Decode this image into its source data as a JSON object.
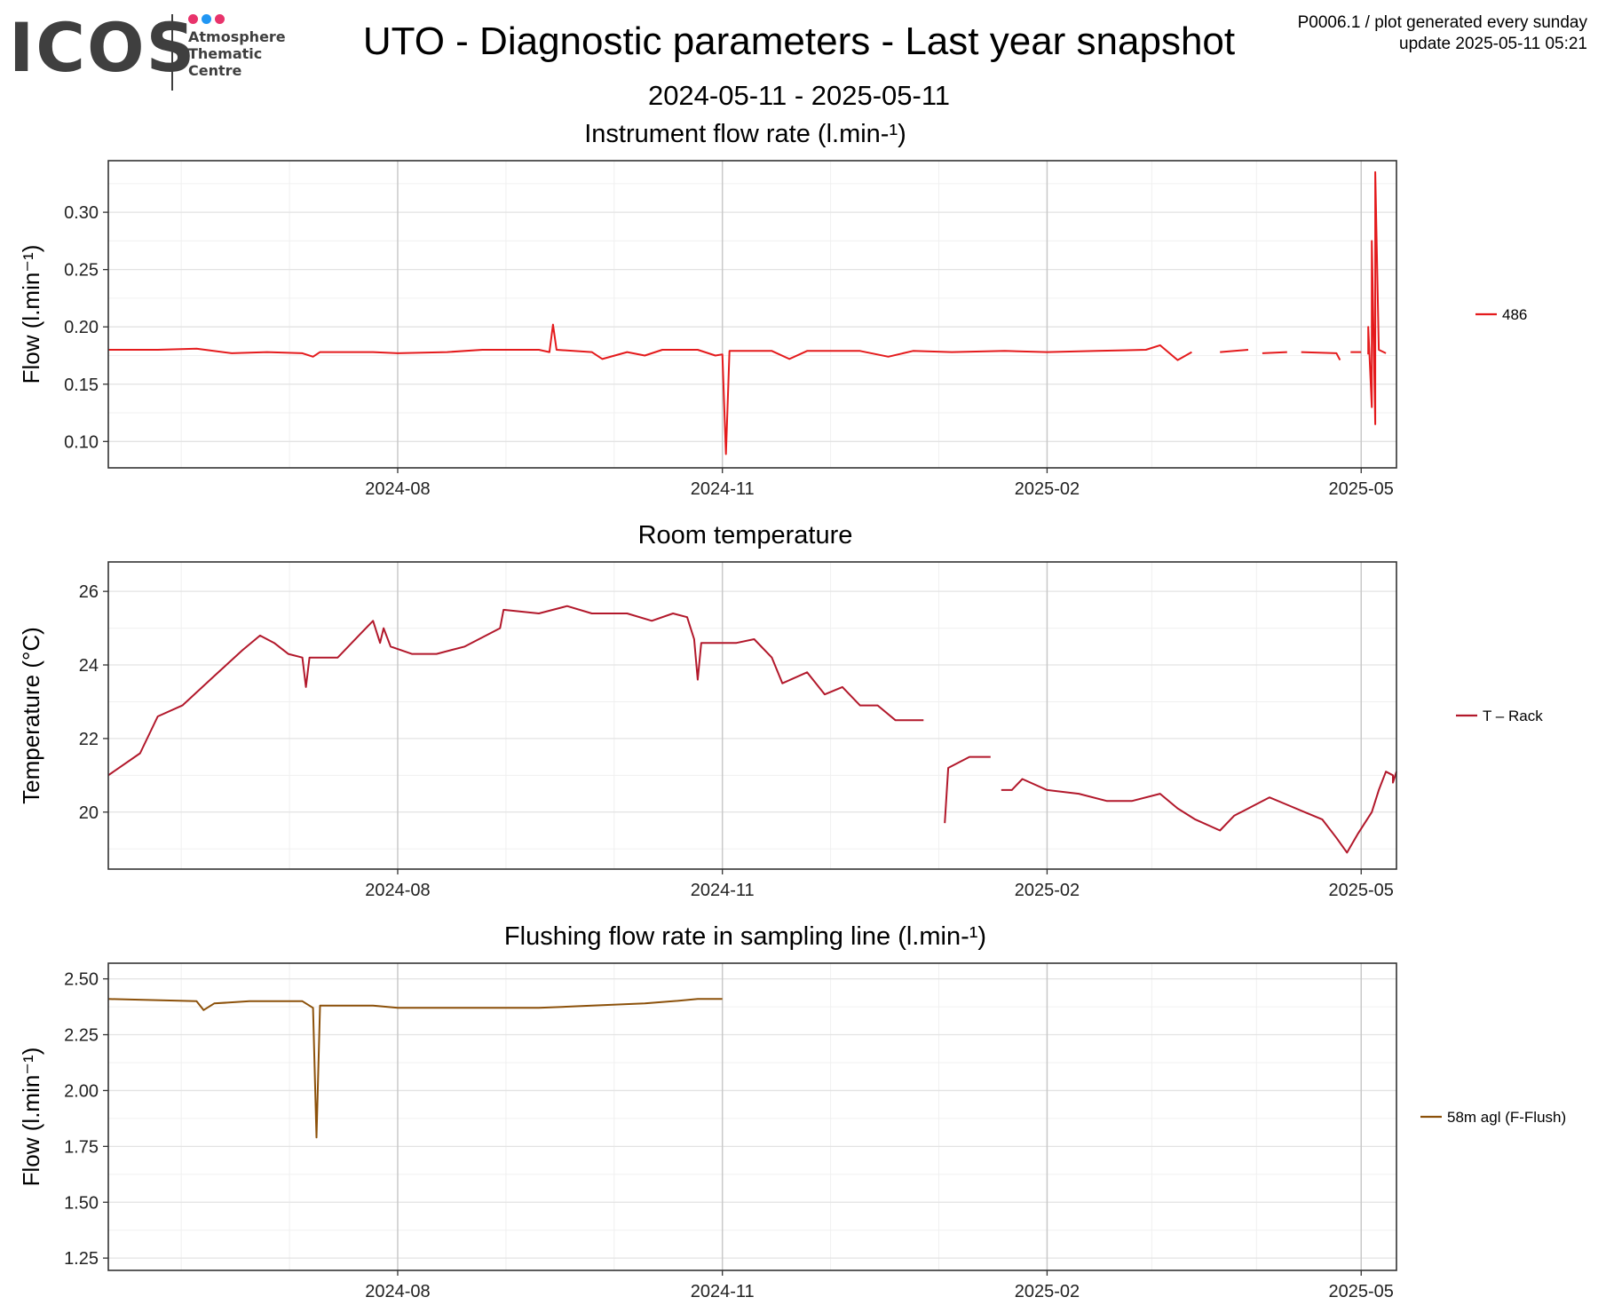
{
  "logo": {
    "word": "ICOS",
    "line1": "Atmosphere",
    "line2": "Thematic",
    "line3": "Centre",
    "dot_colors": [
      "#e8336b",
      "#2196f3",
      "#e8336b"
    ]
  },
  "header": {
    "title": "UTO - Diagnostic parameters - Last year snapshot",
    "date_range": "2024-05-11 - 2025-05-11",
    "meta_line1": "P0006.1 / plot generated every sunday",
    "meta_line2": "update  2025-05-11 05:21"
  },
  "chart_data": [
    {
      "type": "line",
      "title": "Instrument flow rate (l.min-¹)",
      "ylabel": "Flow (l.min⁻¹)",
      "xlim": [
        "2024-05-11",
        "2025-05-11"
      ],
      "ylim": [
        0.077,
        0.345
      ],
      "x_ticks": [
        "2024-08-01",
        "2024-11-01",
        "2025-02-01",
        "2025-05-01"
      ],
      "x_tick_labels": [
        "2024-08",
        "2024-11",
        "2025-02",
        "2025-05"
      ],
      "y_ticks": [
        0.1,
        0.15,
        0.2,
        0.25,
        0.3
      ],
      "y_tick_labels": [
        "0.10",
        "0.15",
        "0.20",
        "0.25",
        "0.30"
      ],
      "grid": true,
      "legend": "right",
      "series": [
        {
          "name": "486",
          "color": "#e41a1c",
          "points": [
            [
              "2024-05-11",
              0.18
            ],
            [
              "2024-05-25",
              0.18
            ],
            [
              "2024-06-05",
              0.181
            ],
            [
              "2024-06-15",
              0.177
            ],
            [
              "2024-06-25",
              0.178
            ],
            [
              "2024-07-05",
              0.177
            ],
            [
              "2024-07-08",
              0.174
            ],
            [
              "2024-07-10",
              0.178
            ],
            [
              "2024-07-25",
              0.178
            ],
            [
              "2024-08-01",
              0.177
            ],
            [
              "2024-08-15",
              0.178
            ],
            [
              "2024-08-25",
              0.18
            ],
            [
              "2024-09-10",
              0.18
            ],
            [
              "2024-09-13",
              0.178
            ],
            [
              "2024-09-14",
              0.202
            ],
            [
              "2024-09-15",
              0.18
            ],
            [
              "2024-09-25",
              0.178
            ],
            [
              "2024-09-28",
              0.172
            ],
            [
              "2024-10-05",
              0.178
            ],
            [
              "2024-10-10",
              0.175
            ],
            [
              "2024-10-15",
              0.18
            ],
            [
              "2024-10-25",
              0.18
            ],
            [
              "2024-10-30",
              0.175
            ],
            [
              "2024-11-01",
              0.176
            ],
            [
              "2024-11-02",
              0.089
            ],
            [
              "2024-11-03",
              0.179
            ],
            [
              "2024-11-15",
              0.179
            ],
            [
              "2024-11-20",
              0.172
            ],
            [
              "2024-11-25",
              0.179
            ],
            [
              "2024-12-10",
              0.179
            ],
            [
              "2024-12-18",
              0.174
            ],
            [
              "2024-12-25",
              0.179
            ],
            [
              "2025-01-05",
              0.178
            ],
            [
              "2025-01-20",
              0.179
            ],
            [
              "2025-02-01",
              0.178
            ],
            [
              "2025-02-15",
              0.179
            ],
            [
              "2025-03-01",
              0.18
            ],
            [
              "2025-03-05",
              0.184
            ],
            [
              "2025-03-10",
              0.171
            ],
            [
              "2025-03-14",
              0.178
            ],
            [
              "2025-03-20",
              null
            ],
            [
              "2025-03-22",
              0.178
            ],
            [
              "2025-03-30",
              0.18
            ],
            [
              "2025-04-01",
              null
            ],
            [
              "2025-04-03",
              0.177
            ],
            [
              "2025-04-10",
              0.178
            ],
            [
              "2025-04-12",
              null
            ],
            [
              "2025-04-14",
              0.178
            ],
            [
              "2025-04-24",
              0.177
            ],
            [
              "2025-04-25",
              0.171
            ],
            [
              "2025-04-26",
              null
            ],
            [
              "2025-04-28",
              0.178
            ],
            [
              "2025-05-01",
              0.178
            ],
            [
              "2025-05-02",
              null
            ],
            [
              "2025-05-03",
              0.176
            ],
            [
              "2025-05-03",
              0.2
            ],
            [
              "2025-05-04",
              0.13
            ],
            [
              "2025-05-04",
              0.275
            ],
            [
              "2025-05-05",
              0.115
            ],
            [
              "2025-05-05",
              0.335
            ],
            [
              "2025-05-06",
              0.18
            ],
            [
              "2025-05-08",
              0.177
            ]
          ]
        }
      ]
    },
    {
      "type": "line",
      "title": "Room temperature",
      "ylabel": "Temperature (°C)",
      "xlim": [
        "2024-05-11",
        "2025-05-11"
      ],
      "ylim": [
        18.45,
        26.8
      ],
      "x_ticks": [
        "2024-08-01",
        "2024-11-01",
        "2025-02-01",
        "2025-05-01"
      ],
      "x_tick_labels": [
        "2024-08",
        "2024-11",
        "2025-02",
        "2025-05"
      ],
      "y_ticks": [
        20,
        22,
        24,
        26
      ],
      "y_tick_labels": [
        "20",
        "22",
        "24",
        "26"
      ],
      "grid": true,
      "legend": "right",
      "series": [
        {
          "name": "T – Rack",
          "color": "#b2182b",
          "points": [
            [
              "2024-05-11",
              21.0
            ],
            [
              "2024-05-20",
              21.6
            ],
            [
              "2024-05-25",
              22.6
            ],
            [
              "2024-06-01",
              22.9
            ],
            [
              "2024-06-10",
              23.7
            ],
            [
              "2024-06-18",
              24.4
            ],
            [
              "2024-06-23",
              24.8
            ],
            [
              "2024-06-27",
              24.6
            ],
            [
              "2024-07-01",
              24.3
            ],
            [
              "2024-07-05",
              24.2
            ],
            [
              "2024-07-06",
              23.4
            ],
            [
              "2024-07-07",
              24.2
            ],
            [
              "2024-07-15",
              24.2
            ],
            [
              "2024-07-22",
              24.9
            ],
            [
              "2024-07-25",
              25.2
            ],
            [
              "2024-07-27",
              24.6
            ],
            [
              "2024-07-28",
              25.0
            ],
            [
              "2024-07-30",
              24.5
            ],
            [
              "2024-08-05",
              24.3
            ],
            [
              "2024-08-12",
              24.3
            ],
            [
              "2024-08-20",
              24.5
            ],
            [
              "2024-08-30",
              25.0
            ],
            [
              "2024-08-31",
              25.5
            ],
            [
              "2024-09-10",
              25.4
            ],
            [
              "2024-09-18",
              25.6
            ],
            [
              "2024-09-25",
              25.4
            ],
            [
              "2024-10-05",
              25.4
            ],
            [
              "2024-10-12",
              25.2
            ],
            [
              "2024-10-18",
              25.4
            ],
            [
              "2024-10-22",
              25.3
            ],
            [
              "2024-10-24",
              24.7
            ],
            [
              "2024-10-25",
              23.6
            ],
            [
              "2024-10-26",
              24.6
            ],
            [
              "2024-11-05",
              24.6
            ],
            [
              "2024-11-10",
              24.7
            ],
            [
              "2024-11-15",
              24.2
            ],
            [
              "2024-11-18",
              23.5
            ],
            [
              "2024-11-25",
              23.8
            ],
            [
              "2024-11-30",
              23.2
            ],
            [
              "2024-12-05",
              23.4
            ],
            [
              "2024-12-10",
              22.9
            ],
            [
              "2024-12-15",
              22.9
            ],
            [
              "2024-12-20",
              22.5
            ],
            [
              "2024-12-28",
              22.5
            ],
            [
              "2025-01-02",
              null
            ],
            [
              "2025-01-03",
              19.7
            ],
            [
              "2025-01-04",
              21.2
            ],
            [
              "2025-01-10",
              21.5
            ],
            [
              "2025-01-16",
              21.5
            ],
            [
              "2025-01-18",
              null
            ],
            [
              "2025-01-19",
              20.6
            ],
            [
              "2025-01-22",
              20.6
            ],
            [
              "2025-01-25",
              20.9
            ],
            [
              "2025-02-01",
              20.6
            ],
            [
              "2025-02-10",
              20.5
            ],
            [
              "2025-02-18",
              20.3
            ],
            [
              "2025-02-25",
              20.3
            ],
            [
              "2025-03-05",
              20.5
            ],
            [
              "2025-03-10",
              20.1
            ],
            [
              "2025-03-15",
              19.8
            ],
            [
              "2025-03-22",
              19.5
            ],
            [
              "2025-03-26",
              19.9
            ],
            [
              "2025-04-01",
              20.2
            ],
            [
              "2025-04-05",
              20.4
            ],
            [
              "2025-04-10",
              20.2
            ],
            [
              "2025-04-15",
              20.0
            ],
            [
              "2025-04-20",
              19.8
            ],
            [
              "2025-04-24",
              19.3
            ],
            [
              "2025-04-27",
              18.9
            ],
            [
              "2025-04-30",
              19.4
            ],
            [
              "2025-05-04",
              20.0
            ],
            [
              "2025-05-06",
              20.6
            ],
            [
              "2025-05-08",
              21.1
            ],
            [
              "2025-05-10",
              21.0
            ],
            [
              "2025-05-10",
              20.8
            ],
            [
              "2025-05-11",
              21.1
            ]
          ]
        }
      ]
    },
    {
      "type": "line",
      "title": "Flushing flow rate in sampling line (l.min-¹)",
      "ylabel": "Flow (l.min⁻¹)",
      "xlim": [
        "2024-05-11",
        "2025-05-11"
      ],
      "ylim": [
        1.195,
        2.57
      ],
      "x_ticks": [
        "2024-08-01",
        "2024-11-01",
        "2025-02-01",
        "2025-05-01"
      ],
      "x_tick_labels": [
        "2024-08",
        "2024-11",
        "2025-02",
        "2025-05"
      ],
      "y_ticks": [
        1.25,
        1.5,
        1.75,
        2.0,
        2.25,
        2.5
      ],
      "y_tick_labels": [
        "1.25",
        "1.50",
        "1.75",
        "2.00",
        "2.25",
        "2.50"
      ],
      "grid": true,
      "legend": "right",
      "series": [
        {
          "name": "58m agl (F-Flush)",
          "color": "#8c510a",
          "points": [
            [
              "2024-05-11",
              2.41
            ],
            [
              "2024-06-05",
              2.4
            ],
            [
              "2024-06-07",
              2.36
            ],
            [
              "2024-06-10",
              2.39
            ],
            [
              "2024-06-20",
              2.4
            ],
            [
              "2024-07-05",
              2.4
            ],
            [
              "2024-07-08",
              2.37
            ],
            [
              "2024-07-09",
              1.79
            ],
            [
              "2024-07-10",
              2.38
            ],
            [
              "2024-07-25",
              2.38
            ],
            [
              "2024-08-01",
              2.37
            ],
            [
              "2024-08-20",
              2.37
            ],
            [
              "2024-09-10",
              2.37
            ],
            [
              "2024-09-25",
              2.38
            ],
            [
              "2024-10-10",
              2.39
            ],
            [
              "2024-10-18",
              2.4
            ],
            [
              "2024-10-25",
              2.41
            ],
            [
              "2024-11-01",
              2.41
            ]
          ]
        }
      ]
    }
  ]
}
